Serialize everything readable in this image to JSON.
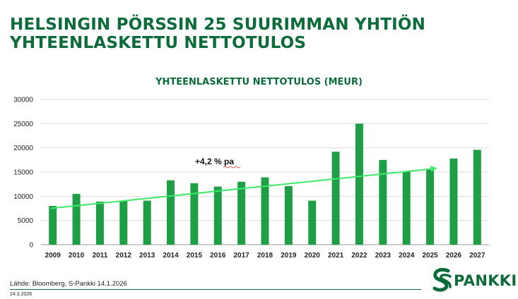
{
  "page": {
    "title": "HELSINGIN PÖRSSIN 25 SUURIMMAN YHTIÖN YHTEENLASKETTU NETTOTULOS",
    "source": "Lähde: Bloomberg, S-Pankki 14.1.2026",
    "date": "24.3.2026",
    "logo_text": "PANKKI"
  },
  "colors": {
    "brand": "#0c6b3b",
    "bar": "#1e9e45",
    "trend": "#3de86a"
  },
  "chart_data": {
    "type": "bar",
    "title": "YHTEENLASKETTU NETTOTULOS (MEUR)",
    "categories": [
      "2009",
      "2010",
      "2011",
      "2012",
      "2013",
      "2014",
      "2015",
      "2016",
      "2017",
      "2018",
      "2019",
      "2020",
      "2021",
      "2022",
      "2023",
      "2024",
      "2025",
      "2026",
      "2027"
    ],
    "values": [
      8000,
      10500,
      8900,
      9100,
      9100,
      13300,
      12700,
      12000,
      13000,
      13900,
      12100,
      9100,
      19200,
      25000,
      17500,
      15200,
      15500,
      17800,
      19600
    ],
    "ylim": [
      0,
      30000
    ],
    "yticks": [
      0,
      5000,
      10000,
      15000,
      20000,
      25000,
      30000
    ],
    "grid": true,
    "trend": {
      "from_year": "2009",
      "to_year": "2025",
      "start_value": 7500,
      "end_value": 15800,
      "label": "+4,2 % pa"
    }
  }
}
